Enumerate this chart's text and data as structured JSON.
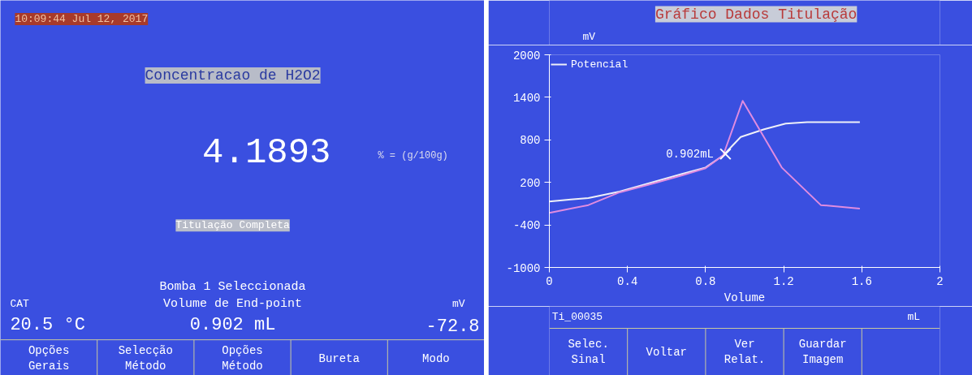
{
  "chart_data": [
    {
      "type": "other",
      "title": "Concentracao de H2O2",
      "annotations": [
        "10:09:44 Jul 12, 2017",
        "4.1893",
        "% = (g/100g)",
        "Titulação Completa",
        "Bomba 1 Seleccionada",
        "Volume de End-point",
        "0.902 mL",
        "CAT",
        "20.5 °C",
        "mV",
        "-72.8",
        "Opções\nGerais",
        "Selecção\nMétodo",
        "Opções\nMétodo",
        "Bureta",
        "Modo"
      ]
    },
    {
      "type": "line",
      "title": "Gráfico Dados Titulação",
      "xlabel": "Volume",
      "ylabel": "mV",
      "xlim": [
        0,
        2
      ],
      "xticks": [
        0,
        0.4,
        0.8,
        1.2,
        1.6,
        2
      ],
      "ylim": [
        -1000,
        2000
      ],
      "yticks": [
        -1000,
        -400,
        200,
        800,
        1400,
        2000
      ],
      "grid": false,
      "legend": "top left",
      "series": [
        {
          "name": "Potencial",
          "color": "#eef0f8",
          "x": [
            0,
            0.11,
            0.2,
            0.36,
            0.54,
            0.68,
            0.8,
            0.89,
            0.98,
            1.1,
            1.21,
            1.32,
            1.59
          ],
          "values": [
            -70,
            -40,
            -20,
            70,
            210,
            320,
            410,
            580,
            840,
            950,
            1030,
            1050,
            1050
          ]
        },
        {
          "color": "#e08ce0",
          "x": [
            0,
            0.2,
            0.36,
            0.54,
            0.68,
            0.8,
            0.89,
            0.99,
            1.19,
            1.39,
            1.59
          ],
          "values": [
            -230,
            -120,
            60,
            190,
            300,
            400,
            580,
            1350,
            410,
            -120,
            -170
          ]
        }
      ],
      "annotations": [
        {
          "text": "0.902mL",
          "x": 0.902,
          "y": 600
        },
        "mL",
        "Ti_00035",
        "Selec.\nSinal",
        "Voltar",
        "Ver\nRelat.",
        "Guardar\nImagem"
      ]
    }
  ]
}
